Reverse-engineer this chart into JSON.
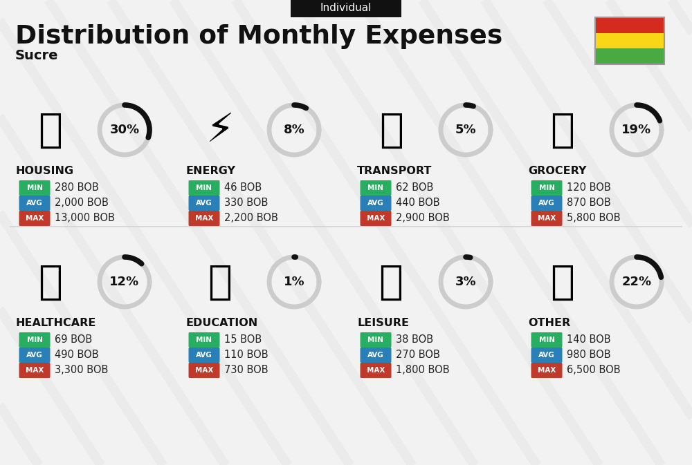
{
  "title": "Distribution of Monthly Expenses",
  "subtitle": "Individual",
  "city": "Sucre",
  "bg_color": "#f2f2f2",
  "categories": [
    {
      "name": "HOUSING",
      "pct": 30,
      "min": "280 BOB",
      "avg": "2,000 BOB",
      "max": "13,000 BOB",
      "row": 0,
      "col": 0
    },
    {
      "name": "ENERGY",
      "pct": 8,
      "min": "46 BOB",
      "avg": "330 BOB",
      "max": "2,200 BOB",
      "row": 0,
      "col": 1
    },
    {
      "name": "TRANSPORT",
      "pct": 5,
      "min": "62 BOB",
      "avg": "440 BOB",
      "max": "2,900 BOB",
      "row": 0,
      "col": 2
    },
    {
      "name": "GROCERY",
      "pct": 19,
      "min": "120 BOB",
      "avg": "870 BOB",
      "max": "5,800 BOB",
      "row": 0,
      "col": 3
    },
    {
      "name": "HEALTHCARE",
      "pct": 12,
      "min": "69 BOB",
      "avg": "490 BOB",
      "max": "3,300 BOB",
      "row": 1,
      "col": 0
    },
    {
      "name": "EDUCATION",
      "pct": 1,
      "min": "15 BOB",
      "avg": "110 BOB",
      "max": "730 BOB",
      "row": 1,
      "col": 1
    },
    {
      "name": "LEISURE",
      "pct": 3,
      "min": "38 BOB",
      "avg": "270 BOB",
      "max": "1,800 BOB",
      "row": 1,
      "col": 2
    },
    {
      "name": "OTHER",
      "pct": 22,
      "min": "140 BOB",
      "avg": "980 BOB",
      "max": "6,500 BOB",
      "row": 1,
      "col": 3
    }
  ],
  "min_color": "#27ae60",
  "avg_color": "#2980b9",
  "max_color": "#c0392b",
  "arc_color_active": "#111111",
  "arc_color_inactive": "#cccccc",
  "flag_colors": [
    "#d52b1e",
    "#f9d616",
    "#4aaa42"
  ],
  "stripe_color": "#e0e0e0",
  "divider_color": "#cccccc"
}
